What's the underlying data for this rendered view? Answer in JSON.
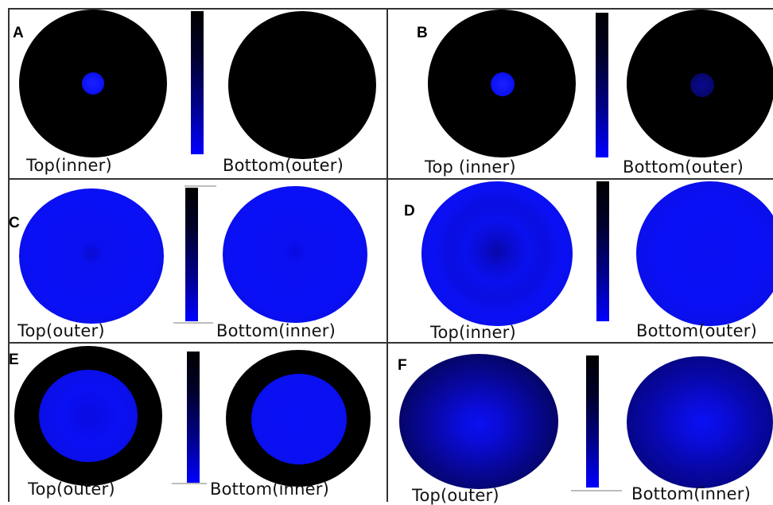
{
  "colors": {
    "black": "#000000",
    "blue": "#0a10ff",
    "dark_blue": "#0a0a8c",
    "frame": "#333333"
  },
  "panels": {
    "A": {
      "letter": "A",
      "left_caption": "Top(inner)",
      "right_caption": "Bottom(outer)"
    },
    "B": {
      "letter": "B",
      "left_caption": "Top (inner)",
      "right_caption": "Bottom(outer)"
    },
    "C": {
      "letter": "C",
      "left_caption": "Top(outer)",
      "right_caption": "Bottom(inner)"
    },
    "D": {
      "letter": "D",
      "left_caption": "Top(inner)",
      "right_caption": "Bottom(outer)"
    },
    "E": {
      "letter": "E",
      "left_caption": "Top(outer)",
      "right_caption": "Bottom(inner)"
    },
    "F": {
      "letter": "F",
      "left_caption": "Top(outer)",
      "right_caption": "Bottom(inner)"
    }
  }
}
